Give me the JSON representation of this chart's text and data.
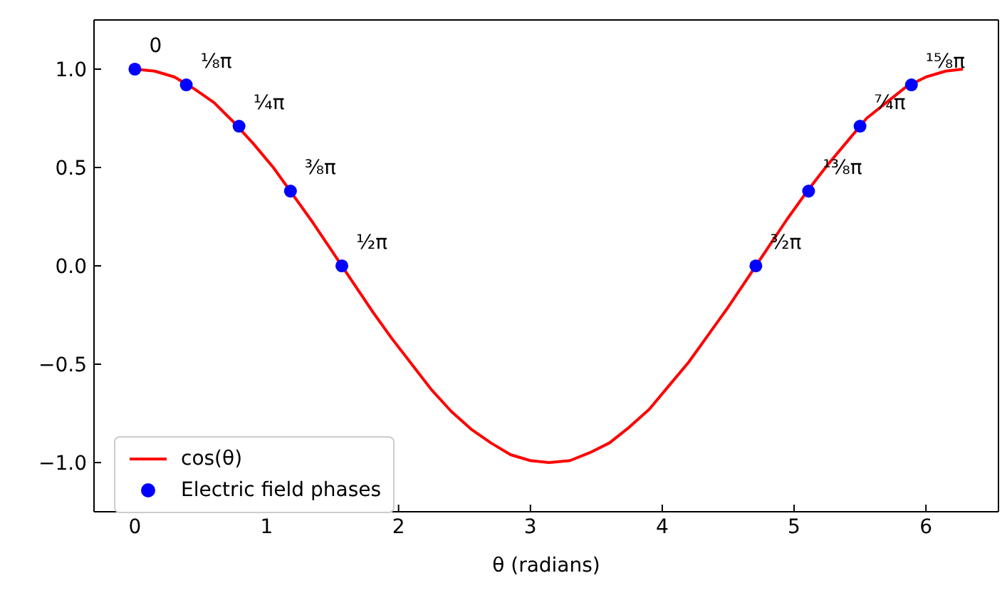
{
  "chart_data": {
    "type": "line",
    "xlabel": "θ (radians)",
    "xlim": [
      -0.31,
      6.55
    ],
    "xticks": [
      0,
      1,
      2,
      3,
      4,
      5,
      6
    ],
    "ylim": [
      -1.25,
      1.25
    ],
    "yticks": [
      {
        "value": -1,
        "label": "−1.0"
      },
      {
        "value": -0.5,
        "label": "−0.5"
      },
      {
        "value": 0,
        "label": "0.0"
      },
      {
        "value": 0.5,
        "label": "0.5"
      },
      {
        "value": 1,
        "label": "1.0"
      }
    ],
    "grid": false,
    "legend": "bottom left",
    "series": [
      {
        "name": "cos(θ)",
        "color": "#ff0000",
        "marker": "none",
        "line_style": "solid",
        "x": [
          0,
          0.15,
          0.3,
          0.45,
          0.6,
          0.75,
          0.9,
          1.05,
          1.2,
          1.35,
          1.5,
          1.65,
          1.8,
          1.95,
          2.1,
          2.25,
          2.4,
          2.55,
          2.7,
          2.85,
          3.0,
          3.14,
          3.3,
          3.45,
          3.6,
          3.75,
          3.9,
          4.05,
          4.2,
          4.35,
          4.5,
          4.65,
          4.8,
          4.95,
          5.1,
          5.25,
          5.4,
          5.55,
          5.7,
          5.85,
          6.0,
          6.15,
          6.28
        ],
        "values": [
          1,
          0.99,
          0.96,
          0.9,
          0.83,
          0.73,
          0.62,
          0.5,
          0.36,
          0.22,
          0.07,
          -0.08,
          -0.23,
          -0.37,
          -0.5,
          -0.63,
          -0.74,
          -0.83,
          -0.9,
          -0.96,
          -0.99,
          -1,
          -0.99,
          -0.95,
          -0.9,
          -0.82,
          -0.73,
          -0.61,
          -0.49,
          -0.35,
          -0.21,
          -0.06,
          0.09,
          0.24,
          0.38,
          0.51,
          0.63,
          0.75,
          0.83,
          0.91,
          0.96,
          0.99,
          1
        ]
      },
      {
        "name": "Electric field phases",
        "type": "scatter",
        "color": "#0000ff",
        "marker": "circle",
        "x": [
          0,
          0.39,
          0.79,
          1.18,
          1.57,
          4.71,
          5.11,
          5.5,
          5.89
        ],
        "values": [
          1,
          0.92,
          0.71,
          0.38,
          0,
          0,
          0.38,
          0.71,
          0.92
        ]
      }
    ],
    "annotations": [
      {
        "text": "0",
        "x": 0,
        "y": 1
      },
      {
        "text": "¹⁄₈π",
        "x": 0.39,
        "y": 0.92
      },
      {
        "text": "¹⁄₄π",
        "x": 0.79,
        "y": 0.71
      },
      {
        "text": "³⁄₈π",
        "x": 1.18,
        "y": 0.38
      },
      {
        "text": "¹⁄₂π",
        "x": 1.57,
        "y": 0
      },
      {
        "text": "³⁄₂π",
        "x": 4.71,
        "y": 0
      },
      {
        "text": "¹³⁄₈π",
        "x": 5.11,
        "y": 0.38
      },
      {
        "text": "⁷⁄₄π",
        "x": 5.5,
        "y": 0.71
      },
      {
        "text": "¹⁵⁄₈π",
        "x": 5.89,
        "y": 0.92
      }
    ]
  }
}
